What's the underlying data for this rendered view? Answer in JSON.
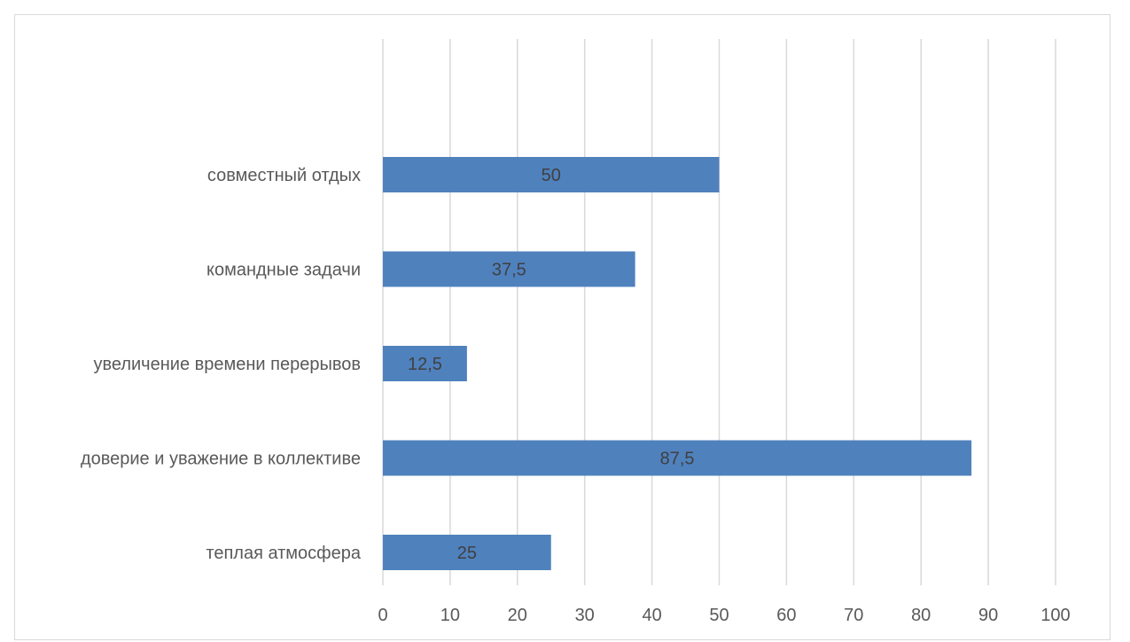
{
  "chart_data": {
    "type": "bar",
    "orientation": "horizontal",
    "title": "",
    "xlabel": "",
    "ylabel": "",
    "categories": [
      "совместный отдых",
      "командные задачи",
      "увеличение времени перерывов",
      "доверие и уважение в коллективе",
      "теплая атмосфера"
    ],
    "values": [
      50,
      37.5,
      12.5,
      87.5,
      25
    ],
    "value_labels": [
      "50",
      "37,5",
      "12,5",
      "87,5",
      "25"
    ],
    "xlim": [
      0,
      100
    ],
    "x_ticks": [
      0,
      10,
      20,
      30,
      40,
      50,
      60,
      70,
      80,
      90,
      100
    ],
    "x_tick_labels": [
      "0",
      "10",
      "20",
      "30",
      "40",
      "50",
      "60",
      "70",
      "80",
      "90",
      "100"
    ],
    "grid": true,
    "legend": "none",
    "colors": {
      "bar": "#4f81bd",
      "grid": "#d9d9d9",
      "text": "#595959",
      "data_label": "#404040"
    }
  }
}
